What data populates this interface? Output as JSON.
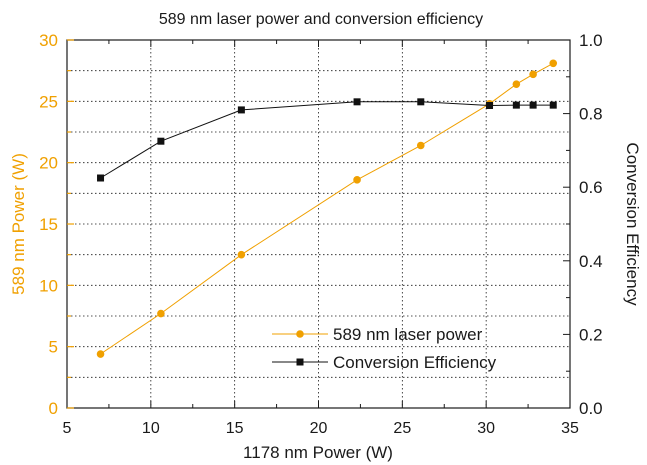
{
  "chart_data": {
    "type": "line",
    "title": "589 nm laser power and conversion efficiency",
    "xlabel": "1178 nm Power (W)",
    "ylabel_left": "589 nm Power (W)",
    "ylabel_right": "Conversion Efficiency",
    "xlim": [
      5,
      35
    ],
    "ylim_left": [
      0,
      30
    ],
    "ylim_right": [
      0.0,
      1.0
    ],
    "x_ticks": [
      "5",
      "10",
      "15",
      "20",
      "25",
      "30",
      "35"
    ],
    "y_left_ticks": [
      "0",
      "5",
      "10",
      "15",
      "20",
      "25",
      "30"
    ],
    "y_right_ticks": [
      "0.0",
      "0.2",
      "0.4",
      "0.6",
      "0.8",
      "1.0"
    ],
    "grid": true,
    "legend_position": "bottom-right",
    "series": [
      {
        "name": "589 nm laser power",
        "axis": "left",
        "marker": "circle",
        "color": "#f0a000",
        "x": [
          7.0,
          10.6,
          15.4,
          22.3,
          26.1,
          30.2,
          31.8,
          32.8,
          34.0
        ],
        "y": [
          4.4,
          7.7,
          12.5,
          18.6,
          21.4,
          24.8,
          26.4,
          27.2,
          28.1
        ]
      },
      {
        "name": "Conversion Efficiency",
        "axis": "right",
        "marker": "square",
        "color": "#111111",
        "x": [
          7.0,
          10.6,
          15.4,
          22.3,
          26.1,
          30.2,
          31.8,
          32.8,
          34.0
        ],
        "y": [
          0.625,
          0.725,
          0.81,
          0.832,
          0.832,
          0.822,
          0.823,
          0.823,
          0.823
        ]
      }
    ]
  }
}
